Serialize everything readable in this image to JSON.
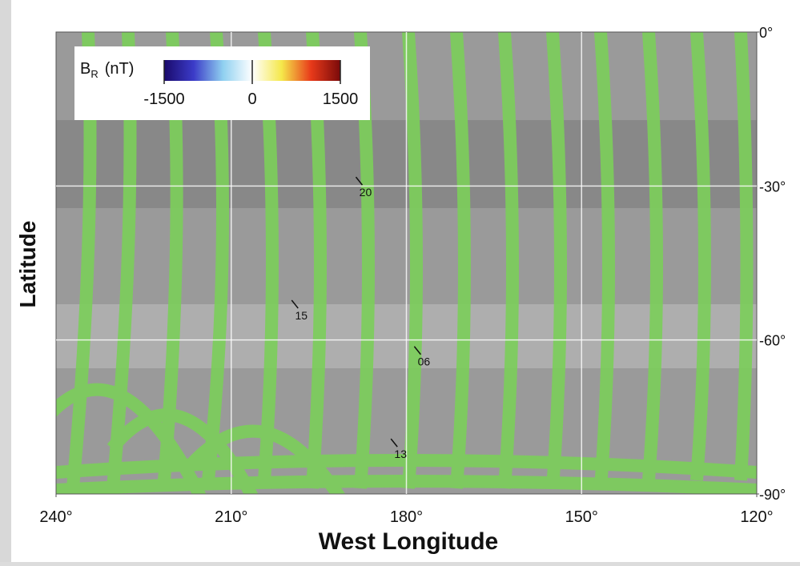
{
  "chart_data": {
    "type": "map",
    "x_label": "West Longitude",
    "y_label": "Latitude",
    "xlim": [
      240,
      120
    ],
    "xticks": [
      {
        "value": 240,
        "label": "240°"
      },
      {
        "value": 210,
        "label": "210°"
      },
      {
        "value": 180,
        "label": "180°"
      },
      {
        "value": 150,
        "label": "150°"
      },
      {
        "value": 120,
        "label": "120°"
      }
    ],
    "ylim": [
      -90,
      0
    ],
    "yticks": [
      {
        "value": 0,
        "label": "0°"
      },
      {
        "value": -30,
        "label": "-30°"
      },
      {
        "value": -60,
        "label": "-60°"
      },
      {
        "value": -90,
        "label": "-90°"
      }
    ],
    "grid": true,
    "colorbar": {
      "symbol": "B",
      "subscript": "R",
      "unit": "(nT)",
      "clim": [
        -1500,
        1500
      ],
      "ticks": [
        -1500,
        0,
        1500
      ],
      "colormap": [
        "#1a0a6b",
        "#3b3bc8",
        "#8fd0f0",
        "#ffffff",
        "#f5e84a",
        "#e83a1a",
        "#7a0a0a"
      ]
    },
    "annotations": [
      {
        "text": "20",
        "x": 187,
        "y": -32
      },
      {
        "text": "15",
        "x": 198,
        "y": -56
      },
      {
        "text": "06",
        "x": 177,
        "y": -65
      },
      {
        "text": "13",
        "x": 181,
        "y": -83
      }
    ]
  }
}
